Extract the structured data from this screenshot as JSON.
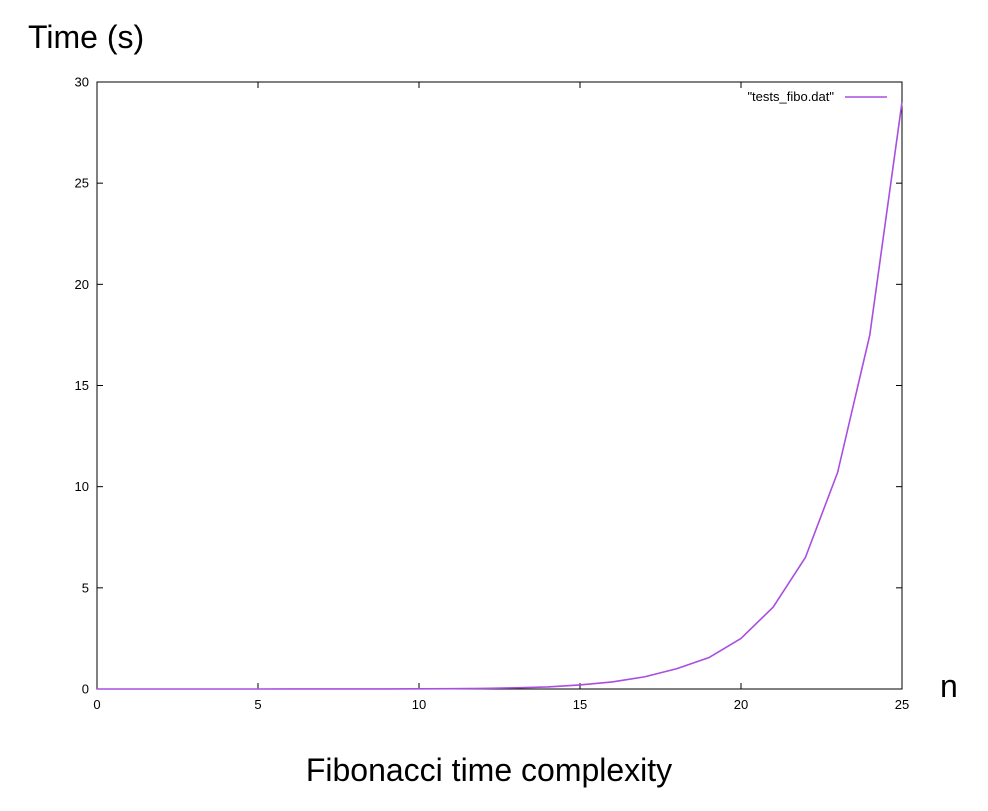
{
  "chart_data": {
    "type": "line",
    "ylabel": "Time (s)",
    "xlabel": "n",
    "caption": "Fibonacci time complexity",
    "xlim": [
      0,
      25
    ],
    "ylim": [
      0,
      30
    ],
    "xticks": [
      0,
      5,
      10,
      15,
      20,
      25
    ],
    "yticks": [
      0,
      5,
      10,
      15,
      20,
      25,
      30
    ],
    "grid": false,
    "legend_position": "top-right",
    "series": [
      {
        "name": "\"tests_fibo.dat\"",
        "color": "#a84ee0",
        "x": [
          0,
          1,
          2,
          3,
          4,
          5,
          6,
          7,
          8,
          9,
          10,
          11,
          12,
          13,
          14,
          15,
          16,
          17,
          18,
          19,
          20,
          21,
          22,
          23,
          24,
          25
        ],
        "values": [
          0,
          0,
          0,
          0,
          0,
          0,
          0.001,
          0.002,
          0.003,
          0.005,
          0.008,
          0.015,
          0.03,
          0.06,
          0.1,
          0.2,
          0.35,
          0.6,
          1.0,
          1.55,
          2.5,
          4.05,
          6.5,
          10.7,
          17.5,
          29.0
        ]
      }
    ]
  }
}
